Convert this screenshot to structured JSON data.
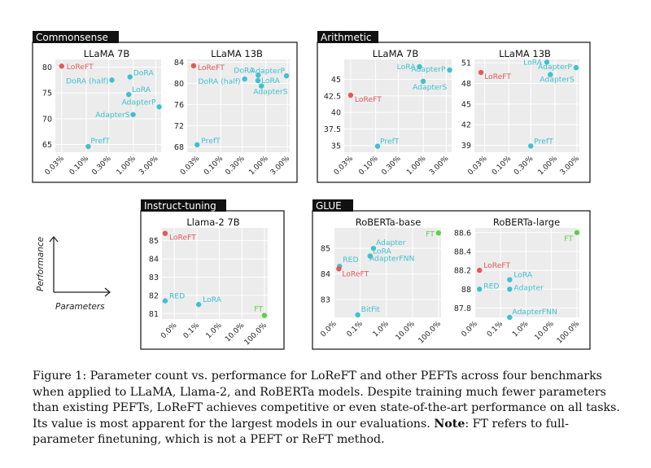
{
  "axes_hint": {
    "y_label": "Performance",
    "x_label": "Parameters"
  },
  "caption": {
    "label": "Figure 1:",
    "text_before_note": "Parameter count vs. performance for LoReFT and other PEFTs across four benchmarks when applied to LLaMA, Llama-2, and RoBERTa models. Despite training much fewer parameters than existing PEFTs, LoReFT achieves competitive or even state-of-the-art performance on all tasks. Its value is most apparent for the largest models in our evaluations.",
    "note_label": "Note",
    "text_after_note": ": FT refers to full-parameter finetuning, which is not a PEFT or ReFT method."
  },
  "colors": {
    "loreft": "#e05a5a",
    "peft": "#3fc1cf",
    "ft": "#58d244",
    "bg": "#ececec",
    "grid": "#ffffff",
    "frame": "#222222"
  },
  "panels": [
    {
      "name": "Commonsense",
      "charts": [
        "cs7",
        "cs13"
      ]
    },
    {
      "name": "Arithmetic",
      "charts": [
        "ar7",
        "ar13"
      ]
    },
    {
      "name": "Instruct-tuning",
      "charts": [
        "it7"
      ]
    },
    {
      "name": "GLUE",
      "charts": [
        "gb",
        "gl"
      ]
    }
  ],
  "chart_data": [
    {
      "id": "cs7",
      "type": "scatter",
      "title": "LLaMA 7B",
      "x_scale": "log",
      "x_unit": "percent",
      "x_ticks": [
        0.03,
        0.1,
        0.3,
        1.0,
        3.0
      ],
      "x_tick_labels": [
        "0.03%",
        "0.10%",
        "0.30%",
        "1.00%",
        "3.00%"
      ],
      "y_ticks": [
        65,
        70,
        75,
        80
      ],
      "y_tick_labels": [
        "65",
        "70",
        "75",
        "80"
      ],
      "ylim": [
        63.5,
        81.5
      ],
      "points": [
        {
          "label": "LoReFT",
          "x": 0.03,
          "y": 80.2,
          "kind": "loreft"
        },
        {
          "label": "DoRA (half)",
          "x": 0.35,
          "y": 77.5,
          "kind": "peft"
        },
        {
          "label": "DoRA",
          "x": 0.85,
          "y": 78.1,
          "kind": "peft"
        },
        {
          "label": "LoRA",
          "x": 0.8,
          "y": 74.7,
          "kind": "peft"
        },
        {
          "label": "AdapterP",
          "x": 3.54,
          "y": 72.3,
          "kind": "peft"
        },
        {
          "label": "AdapterS",
          "x": 0.99,
          "y": 70.8,
          "kind": "peft"
        },
        {
          "label": "PrefT",
          "x": 0.11,
          "y": 64.6,
          "kind": "peft"
        }
      ]
    },
    {
      "id": "cs13",
      "type": "scatter",
      "title": "LLaMA 13B",
      "x_scale": "log",
      "x_unit": "percent",
      "x_ticks": [
        0.03,
        0.1,
        0.3,
        1.0,
        3.0
      ],
      "x_tick_labels": [
        "0.03%",
        "0.10%",
        "0.30%",
        "1.00%",
        "3.00%"
      ],
      "y_ticks": [
        68,
        72,
        76,
        80,
        84
      ],
      "y_tick_labels": [
        "68",
        "72",
        "76",
        "80",
        "84"
      ],
      "ylim": [
        67,
        84.5
      ],
      "points": [
        {
          "label": "LoReFT",
          "x": 0.025,
          "y": 83.3,
          "kind": "loreft"
        },
        {
          "label": "DoRA",
          "x": 0.68,
          "y": 81.5,
          "kind": "peft"
        },
        {
          "label": "DoRA (half)",
          "x": 0.34,
          "y": 80.8,
          "kind": "peft"
        },
        {
          "label": "LoRA",
          "x": 0.67,
          "y": 80.5,
          "kind": "peft"
        },
        {
          "label": "AdapterP",
          "x": 2.89,
          "y": 81.4,
          "kind": "peft"
        },
        {
          "label": "AdapterS",
          "x": 0.8,
          "y": 79.5,
          "kind": "peft"
        },
        {
          "label": "PrefT",
          "x": 0.03,
          "y": 68.4,
          "kind": "peft"
        }
      ]
    },
    {
      "id": "ar7",
      "type": "scatter",
      "title": "LLaMA 7B",
      "x_scale": "log",
      "x_unit": "percent",
      "x_ticks": [
        0.03,
        0.1,
        0.3,
        1.0,
        3.0
      ],
      "x_tick_labels": [
        "0.03%",
        "0.10%",
        "0.30%",
        "1.00%",
        "3.00%"
      ],
      "y_ticks": [
        35,
        37.5,
        40,
        42.5,
        45
      ],
      "y_tick_labels": [
        "35",
        "37.5",
        "40",
        "42.5",
        "45"
      ],
      "ylim": [
        34,
        48
      ],
      "points": [
        {
          "label": "LoReFT",
          "x": 0.03,
          "y": 42.6,
          "kind": "loreft"
        },
        {
          "label": "LoRA",
          "x": 0.83,
          "y": 46.9,
          "kind": "peft"
        },
        {
          "label": "AdapterP",
          "x": 3.54,
          "y": 46.4,
          "kind": "peft"
        },
        {
          "label": "AdapterS",
          "x": 0.99,
          "y": 44.7,
          "kind": "peft"
        },
        {
          "label": "PrefT",
          "x": 0.11,
          "y": 34.9,
          "kind": "peft"
        }
      ]
    },
    {
      "id": "ar13",
      "type": "scatter",
      "title": "LLaMA 13B",
      "x_scale": "log",
      "x_unit": "percent",
      "x_ticks": [
        0.03,
        0.1,
        0.3,
        1.0,
        3.0
      ],
      "x_tick_labels": [
        "0.03%",
        "0.10%",
        "0.30%",
        "1.00%",
        "3.00%"
      ],
      "y_ticks": [
        39,
        42,
        45,
        48,
        51
      ],
      "y_tick_labels": [
        "39",
        "42",
        "45",
        "48",
        "51"
      ],
      "ylim": [
        38,
        51.5
      ],
      "points": [
        {
          "label": "LoReFT",
          "x": 0.025,
          "y": 49.6,
          "kind": "loreft"
        },
        {
          "label": "LoRA",
          "x": 0.67,
          "y": 51.1,
          "kind": "peft"
        },
        {
          "label": "AdapterP",
          "x": 2.89,
          "y": 50.3,
          "kind": "peft"
        },
        {
          "label": "AdapterS",
          "x": 0.8,
          "y": 49.3,
          "kind": "peft"
        },
        {
          "label": "PrefT",
          "x": 0.3,
          "y": 38.9,
          "kind": "peft"
        }
      ]
    },
    {
      "id": "it7",
      "type": "scatter",
      "title": "Llama-2 7B",
      "x_scale": "log",
      "x_unit": "percent",
      "x_ticks": [
        0.01,
        0.1,
        1.0,
        10.0,
        100.0
      ],
      "x_tick_labels": [
        "0.0%",
        "0.1%",
        "1.0%",
        "10.0%",
        "100.0%"
      ],
      "y_ticks": [
        81,
        82,
        83,
        84,
        85
      ],
      "y_tick_labels": [
        "81",
        "82",
        "83",
        "84",
        "85"
      ],
      "ylim": [
        80.7,
        85.7
      ],
      "points": [
        {
          "label": "LoReFT",
          "x": 0.0039,
          "y": 85.4,
          "kind": "loreft"
        },
        {
          "label": "RED",
          "x": 0.0039,
          "y": 81.7,
          "kind": "peft"
        },
        {
          "label": "LoRA",
          "x": 0.12,
          "y": 81.5,
          "kind": "peft"
        },
        {
          "label": "FT",
          "x": 100,
          "y": 80.9,
          "kind": "ft"
        }
      ]
    },
    {
      "id": "gb",
      "type": "scatter",
      "title": "RoBERTa-base",
      "x_scale": "log",
      "x_unit": "percent",
      "x_ticks": [
        0.01,
        0.1,
        1.0,
        10.0,
        100.0
      ],
      "x_tick_labels": [
        "0.0%",
        "0.1%",
        "1.0%",
        "10.0%",
        "100.0%"
      ],
      "y_ticks": [
        83,
        84,
        85
      ],
      "y_tick_labels": [
        "83",
        "84",
        "85"
      ],
      "ylim": [
        82.3,
        85.8
      ],
      "points": [
        {
          "label": "FT",
          "x": 100,
          "y": 85.6,
          "kind": "ft"
        },
        {
          "label": "Adapter",
          "x": 0.32,
          "y": 85.0,
          "kind": "peft"
        },
        {
          "label": "LoRA",
          "x": 0.24,
          "y": 84.7,
          "kind": "peft"
        },
        {
          "label": "AdapterFNN",
          "x": 0.24,
          "y": 84.7,
          "kind": "peft"
        },
        {
          "label": "RED",
          "x": 0.016,
          "y": 84.3,
          "kind": "peft"
        },
        {
          "label": "LoReFT",
          "x": 0.015,
          "y": 84.2,
          "kind": "loreft"
        },
        {
          "label": "BitFit",
          "x": 0.08,
          "y": 82.4,
          "kind": "peft"
        }
      ]
    },
    {
      "id": "gl",
      "type": "scatter",
      "title": "RoBERTa-large",
      "x_scale": "log",
      "x_unit": "percent",
      "x_ticks": [
        0.01,
        0.1,
        1.0,
        10.0,
        100.0
      ],
      "x_tick_labels": [
        "0.0%",
        "0.1%",
        "1.0%",
        "10.0%",
        "100.0%"
      ],
      "y_ticks": [
        87.8,
        88.0,
        88.2,
        88.4,
        88.6
      ],
      "y_tick_labels": [
        "87.8",
        "88",
        "88.2",
        "88.4",
        "88.6"
      ],
      "ylim": [
        87.7,
        88.65
      ],
      "points": [
        {
          "label": "FT",
          "x": 100,
          "y": 88.6,
          "kind": "ft"
        },
        {
          "label": "LoReFT",
          "x": 0.015,
          "y": 88.2,
          "kind": "loreft"
        },
        {
          "label": "LoRA",
          "x": 0.23,
          "y": 88.1,
          "kind": "peft"
        },
        {
          "label": "Adapter",
          "x": 0.23,
          "y": 88.0,
          "kind": "peft"
        },
        {
          "label": "RED",
          "x": 0.015,
          "y": 88.0,
          "kind": "peft"
        },
        {
          "label": "AdapterFNN",
          "x": 0.23,
          "y": 87.7,
          "kind": "peft"
        }
      ]
    }
  ]
}
